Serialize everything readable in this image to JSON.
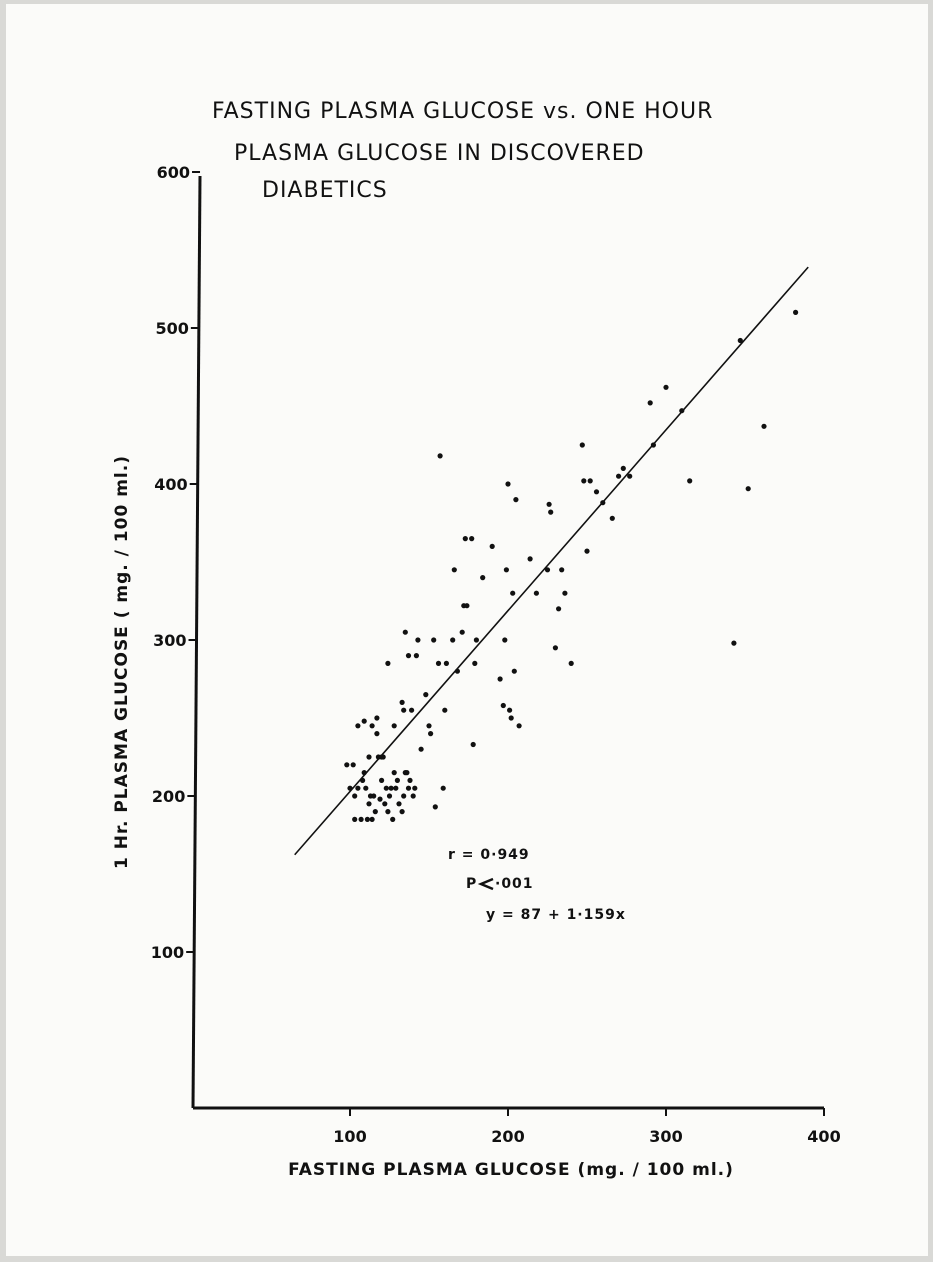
{
  "chart_data": {
    "type": "scatter",
    "title_lines": [
      "FASTING  PLASMA GLUCOSE  vs. ONE  HOUR",
      "PLASMA  GLUCOSE  IN   DISCOVERED",
      "DIABETICS"
    ],
    "xlabel": "FASTING  PLASMA  GLUCOSE (mg. / 100 ml.)",
    "ylabel": "1  Hr.  PLASMA   GLUCOSE  ( mg. / 100 ml.)",
    "xlim": [
      0,
      400
    ],
    "ylim": [
      0,
      600
    ],
    "x_ticks": [
      "100",
      "200",
      "300",
      "400"
    ],
    "y_ticks": [
      "100",
      "200",
      "300",
      "400",
      "500",
      "600"
    ],
    "grid": false,
    "annotations": {
      "r": "r = 0·949",
      "p_prefix": "P",
      "p_value": "·001",
      "equation": "y = 87  +  1·159x"
    },
    "regression": {
      "intercept": 87,
      "slope": 1.159,
      "x_start": 65,
      "x_end": 390
    },
    "points": [
      [
        98,
        220
      ],
      [
        100,
        205
      ],
      [
        102,
        220
      ],
      [
        103,
        200
      ],
      [
        103,
        185
      ],
      [
        105,
        205
      ],
      [
        107,
        185
      ],
      [
        108,
        210
      ],
      [
        109,
        215
      ],
      [
        110,
        205
      ],
      [
        111,
        185
      ],
      [
        112,
        195
      ],
      [
        113,
        200
      ],
      [
        114,
        185
      ],
      [
        115,
        200
      ],
      [
        116,
        190
      ],
      [
        117,
        240
      ],
      [
        118,
        225
      ],
      [
        119,
        198
      ],
      [
        120,
        210
      ],
      [
        121,
        225
      ],
      [
        122,
        195
      ],
      [
        123,
        205
      ],
      [
        124,
        190
      ],
      [
        125,
        200
      ],
      [
        126,
        205
      ],
      [
        127,
        185
      ],
      [
        128,
        215
      ],
      [
        129,
        205
      ],
      [
        130,
        210
      ],
      [
        131,
        195
      ],
      [
        133,
        190
      ],
      [
        134,
        200
      ],
      [
        135,
        215
      ],
      [
        136,
        215
      ],
      [
        137,
        205
      ],
      [
        138,
        210
      ],
      [
        140,
        200
      ],
      [
        141,
        205
      ],
      [
        112,
        225
      ],
      [
        114,
        245
      ],
      [
        117,
        250
      ],
      [
        105,
        245
      ],
      [
        109,
        248
      ],
      [
        120,
        225
      ],
      [
        124,
        285
      ],
      [
        128,
        245
      ],
      [
        133,
        260
      ],
      [
        134,
        255
      ],
      [
        135,
        305
      ],
      [
        137,
        290
      ],
      [
        139,
        255
      ],
      [
        142,
        290
      ],
      [
        143,
        300
      ],
      [
        145,
        230
      ],
      [
        148,
        265
      ],
      [
        150,
        245
      ],
      [
        151,
        240
      ],
      [
        153,
        300
      ],
      [
        154,
        193
      ],
      [
        156,
        285
      ],
      [
        157,
        418
      ],
      [
        159,
        205
      ],
      [
        160,
        255
      ],
      [
        161,
        285
      ],
      [
        165,
        300
      ],
      [
        166,
        345
      ],
      [
        168,
        280
      ],
      [
        171,
        305
      ],
      [
        172,
        322
      ],
      [
        173,
        365
      ],
      [
        174,
        322
      ],
      [
        177,
        365
      ],
      [
        178,
        233
      ],
      [
        179,
        285
      ],
      [
        180,
        300
      ],
      [
        184,
        340
      ],
      [
        190,
        360
      ],
      [
        195,
        275
      ],
      [
        197,
        258
      ],
      [
        198,
        300
      ],
      [
        199,
        345
      ],
      [
        200,
        400
      ],
      [
        201,
        255
      ],
      [
        202,
        250
      ],
      [
        203,
        330
      ],
      [
        204,
        280
      ],
      [
        205,
        390
      ],
      [
        207,
        245
      ],
      [
        214,
        352
      ],
      [
        218,
        330
      ],
      [
        225,
        345
      ],
      [
        226,
        387
      ],
      [
        227,
        382
      ],
      [
        230,
        295
      ],
      [
        232,
        320
      ],
      [
        234,
        345
      ],
      [
        236,
        330
      ],
      [
        240,
        285
      ],
      [
        247,
        425
      ],
      [
        248,
        402
      ],
      [
        250,
        357
      ],
      [
        252,
        402
      ],
      [
        256,
        395
      ],
      [
        260,
        388
      ],
      [
        266,
        378
      ],
      [
        270,
        405
      ],
      [
        273,
        410
      ],
      [
        277,
        405
      ],
      [
        290,
        452
      ],
      [
        292,
        425
      ],
      [
        300,
        462
      ],
      [
        310,
        447
      ],
      [
        315,
        402
      ],
      [
        343,
        298
      ],
      [
        347,
        492
      ],
      [
        352,
        397
      ],
      [
        362,
        437
      ],
      [
        382,
        510
      ]
    ]
  }
}
